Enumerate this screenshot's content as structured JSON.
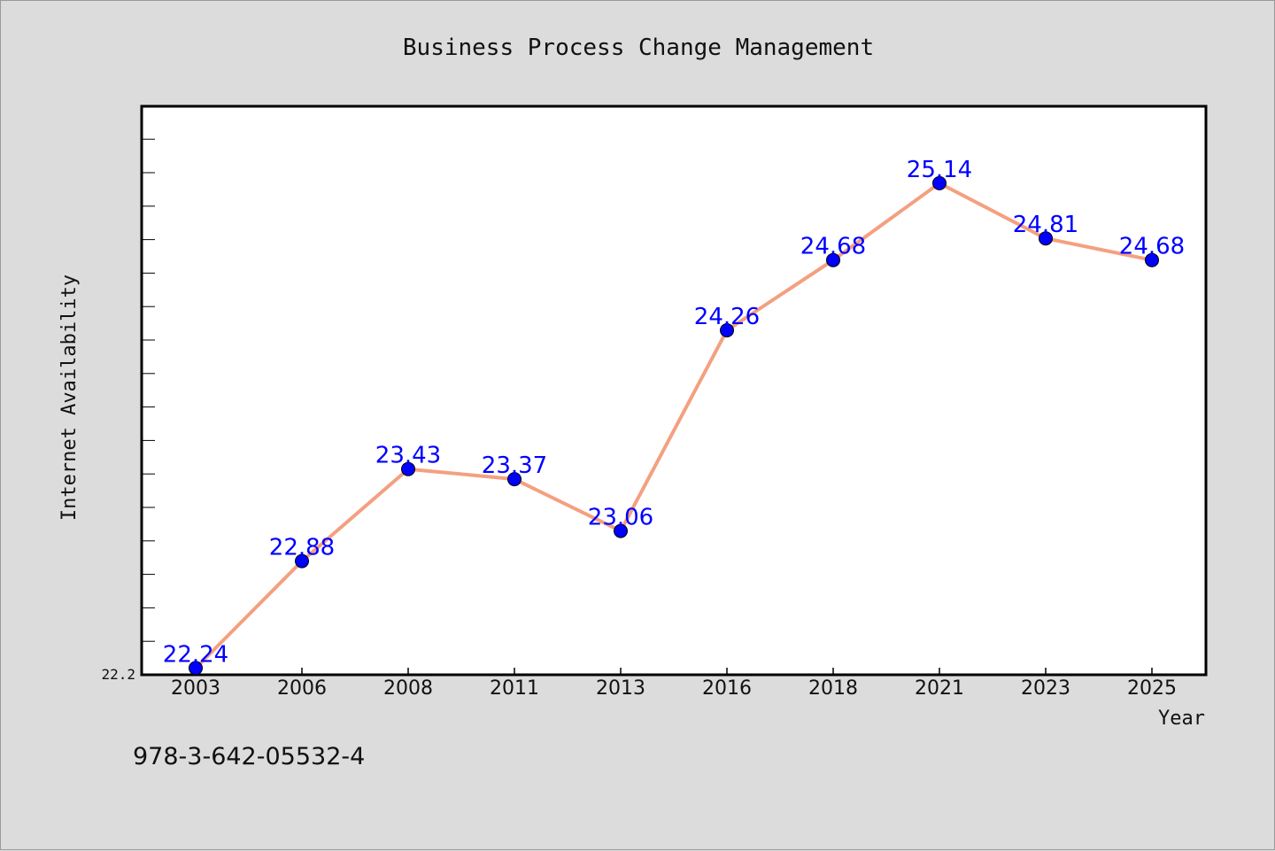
{
  "chart_data": {
    "type": "line",
    "title": "Business Process Change Management",
    "xlabel": "Year",
    "ylabel": "Internet Availability",
    "categories": [
      "2003",
      "2006",
      "2008",
      "2011",
      "2013",
      "2016",
      "2018",
      "2021",
      "2023",
      "2025"
    ],
    "series": [
      {
        "values": [
          22.24,
          22.88,
          23.43,
          23.37,
          23.06,
          24.26,
          24.68,
          25.14,
          24.81,
          24.68
        ],
        "data_labels": [
          "22.24",
          "22.88",
          "23.43",
          "23.37",
          "23.06",
          "24.26",
          "24.68",
          "25.14",
          "24.81",
          "24.68"
        ]
      }
    ],
    "ylim": [
      22.2,
      25.6
    ],
    "ytick_labels": [
      "22.2"
    ],
    "grid": false,
    "line_color": "#f4a080",
    "marker_color": "#0000ff"
  },
  "footnote": "978-3-642-05532-4"
}
